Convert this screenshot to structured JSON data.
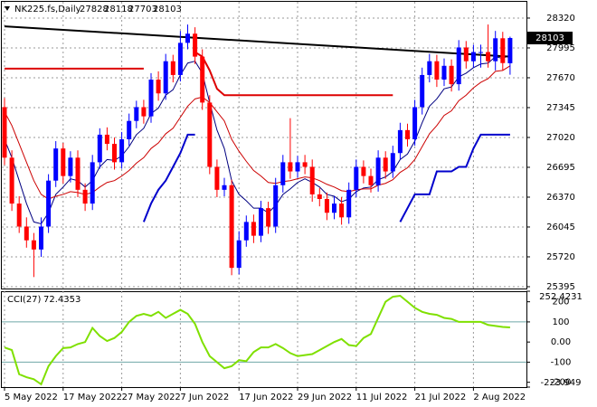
{
  "chart_data": [
    {
      "type": "candlestick",
      "title": "NK225.fs,Daily",
      "categories": [
        "5 May 2022",
        null,
        null,
        null,
        null,
        null,
        null,
        null,
        "17 May 2022",
        null,
        null,
        null,
        null,
        null,
        null,
        null,
        "27 May 2022",
        null,
        null,
        null,
        null,
        null,
        null,
        null,
        "7 Jun 2022",
        null,
        null,
        null,
        null,
        null,
        null,
        null,
        "17 Jun 2022",
        null,
        null,
        null,
        null,
        null,
        null,
        null,
        "29 Jun 2022",
        null,
        null,
        null,
        null,
        null,
        null,
        null,
        "11 Jul 2022",
        null,
        null,
        null,
        null,
        null,
        null,
        null,
        "21 Jul 2022",
        null,
        null,
        null,
        null,
        null,
        null,
        null,
        "2 Aug 2022",
        null,
        null,
        null,
        null,
        null
      ],
      "open": [
        27350,
        26800,
        26300,
        26050,
        25900,
        25800,
        26050,
        26550,
        26900,
        26600,
        26800,
        26450,
        26300,
        26750,
        27050,
        26950,
        26750,
        27000,
        27200,
        27350,
        27250,
        27650,
        27500,
        27850,
        27700,
        28050,
        28150,
        27900,
        27400,
        26700,
        26450,
        26500,
        25600,
        25900,
        26100,
        25950,
        26250,
        26050,
        26500,
        26750,
        26650,
        26750,
        26700,
        26400,
        26350,
        26200,
        26300,
        26150,
        26450,
        26700,
        26600,
        26500,
        26800,
        26650,
        26850,
        27100,
        27000,
        27350,
        27700,
        27850,
        27650,
        27800,
        27600,
        28000,
        27850,
        27950,
        27950,
        27850,
        28100,
        27828
      ],
      "high": [
        27450,
        26880,
        26380,
        26150,
        25980,
        26150,
        26620,
        26980,
        26960,
        26870,
        26880,
        26520,
        26830,
        27120,
        27130,
        27020,
        27080,
        27280,
        27420,
        27430,
        27720,
        27740,
        27930,
        27920,
        28180,
        28250,
        28220,
        27980,
        27480,
        26780,
        26580,
        26560,
        26000,
        26170,
        26180,
        26330,
        26320,
        26580,
        26830,
        27230,
        26820,
        26830,
        26780,
        26470,
        26420,
        26380,
        26370,
        26530,
        26780,
        26770,
        26680,
        26880,
        26870,
        26930,
        27180,
        27170,
        27430,
        27780,
        27930,
        27920,
        27880,
        27870,
        28080,
        28070,
        28030,
        28030,
        28250,
        28180,
        28170,
        28118
      ],
      "low": [
        26720,
        26220,
        25980,
        25820,
        25500,
        25720,
        25980,
        26480,
        26520,
        26530,
        26370,
        26220,
        26230,
        26680,
        26880,
        26670,
        26680,
        26930,
        27120,
        27170,
        27180,
        27420,
        27430,
        27620,
        27630,
        27980,
        27820,
        27320,
        26620,
        26370,
        26380,
        25520,
        25530,
        25830,
        25870,
        25880,
        25970,
        25980,
        26420,
        26570,
        26580,
        26620,
        26320,
        26270,
        26120,
        26130,
        26070,
        26080,
        26370,
        26520,
        26420,
        26430,
        26570,
        26580,
        26780,
        26920,
        26930,
        27270,
        27620,
        27570,
        27580,
        27520,
        27530,
        27770,
        27780,
        27780,
        27780,
        27750,
        27750,
        27703
      ],
      "close": [
        26800,
        26300,
        26050,
        25900,
        25800,
        26050,
        26550,
        26900,
        26600,
        26800,
        26450,
        26300,
        26750,
        27050,
        26950,
        26750,
        27000,
        27200,
        27350,
        27250,
        27650,
        27500,
        27850,
        27700,
        28050,
        28150,
        27900,
        27400,
        26700,
        26450,
        26500,
        25600,
        25900,
        26100,
        25950,
        26250,
        26050,
        26500,
        26750,
        26650,
        26750,
        26700,
        26400,
        26350,
        26200,
        26300,
        26150,
        26450,
        26700,
        26600,
        26500,
        26800,
        26650,
        26850,
        27100,
        27000,
        27350,
        27700,
        27850,
        27650,
        27800,
        27600,
        28000,
        27850,
        27950,
        27950,
        27850,
        28100,
        27830,
        28103
      ],
      "up_color": "#0000ff",
      "down_color": "#ff0000",
      "ylim": [
        25385,
        28497
      ],
      "yticks": [
        28320,
        27995,
        27670,
        27345,
        27020,
        26695,
        26370,
        26045,
        25720,
        25395
      ],
      "grid": true,
      "series": [
        {
          "color": "#000080",
          "width": 1,
          "values": [
            27000,
            26800,
            26550,
            26300,
            26100,
            26080,
            26200,
            26400,
            26480,
            26570,
            26550,
            26480,
            26550,
            26700,
            26780,
            26770,
            26820,
            26920,
            27050,
            27120,
            27280,
            27340,
            27480,
            27540,
            27700,
            27830,
            27850,
            27720,
            27400,
            27100,
            26900,
            26550,
            26400,
            26330,
            26250,
            26250,
            26200,
            26280,
            26400,
            26460,
            26530,
            26570,
            26530,
            26480,
            26400,
            26380,
            26320,
            26350,
            26430,
            26470,
            26480,
            26560,
            26590,
            26650,
            26780,
            26840,
            26980,
            27180,
            27360,
            27440,
            27550,
            27570,
            27680,
            27720,
            27780,
            27820,
            27830,
            27900,
            27880,
            27920
          ]
        },
        {
          "color": "#cc0000",
          "width": 1,
          "values": [
            27300,
            27150,
            26950,
            26750,
            26550,
            26400,
            26350,
            26380,
            26400,
            26430,
            26420,
            26400,
            26420,
            26480,
            26530,
            26550,
            26600,
            26660,
            26740,
            26800,
            26900,
            26960,
            27060,
            27120,
            27240,
            27360,
            27440,
            27460,
            27400,
            27300,
            27200,
            27000,
            26870,
            26760,
            26660,
            26600,
            26530,
            26520,
            26540,
            26550,
            26570,
            26590,
            26580,
            26550,
            26510,
            26480,
            26440,
            26430,
            26450,
            26460,
            26460,
            26500,
            26520,
            26560,
            26640,
            26690,
            26780,
            26920,
            27060,
            27150,
            27260,
            27310,
            27420,
            27480,
            27560,
            27620,
            27660,
            27740,
            27750,
            27800
          ]
        },
        {
          "color": "#0000cc",
          "width": 2,
          "values": [
            null,
            null,
            null,
            null,
            null,
            null,
            null,
            null,
            null,
            null,
            null,
            null,
            null,
            null,
            null,
            null,
            null,
            null,
            null,
            26100,
            26300,
            26450,
            26550,
            26700,
            26850,
            27050,
            27050,
            null,
            null,
            null,
            null,
            null,
            null,
            null,
            null,
            null,
            null,
            null,
            null,
            null,
            null,
            null,
            null,
            null,
            null,
            null,
            null,
            null,
            null,
            null,
            null,
            null,
            null,
            null,
            26100,
            26250,
            26400,
            26400,
            26400,
            26650,
            26650,
            26650,
            26700,
            26700,
            26900,
            27050,
            27050,
            27050,
            27050,
            27050
          ]
        },
        {
          "color": "#dd0000",
          "width": 2,
          "values": [
            27770,
            27770,
            27770,
            27770,
            27770,
            27770,
            27770,
            27770,
            27770,
            27770,
            27770,
            27770,
            27770,
            27770,
            27770,
            27770,
            27770,
            27770,
            27770,
            27770,
            null,
            null,
            null,
            null,
            null,
            null,
            27950,
            27900,
            27750,
            27550,
            27480,
            27480,
            27480,
            27480,
            27480,
            27480,
            27480,
            27480,
            27480,
            27480,
            27480,
            27480,
            27480,
            27480,
            27480,
            27480,
            27480,
            27480,
            27480,
            27480,
            27480,
            27480,
            27480,
            27480,
            null,
            null,
            null,
            null,
            null,
            null,
            null,
            null,
            null,
            null,
            null,
            null,
            null,
            null,
            null,
            null
          ]
        },
        {
          "color": "#000000",
          "width": 2,
          "x": [
            0,
            69
          ],
          "values": [
            28230,
            27900
          ]
        }
      ]
    },
    {
      "type": "line",
      "title": "CCI(27)",
      "series": [
        {
          "color": "#7fe000",
          "width": 2,
          "values": [
            -27,
            -40,
            -160,
            -175,
            -185,
            -210,
            -120,
            -70,
            -30,
            -27,
            -10,
            0,
            70,
            30,
            5,
            20,
            50,
            100,
            130,
            140,
            130,
            150,
            120,
            140,
            160,
            140,
            90,
            0,
            -70,
            -100,
            -130,
            -120,
            -90,
            -95,
            -50,
            -27,
            -27,
            -10,
            -30,
            -55,
            -70,
            -65,
            -60,
            -40,
            -20,
            0,
            15,
            -15,
            -20,
            20,
            40,
            120,
            200,
            225,
            230,
            200,
            170,
            150,
            140,
            135,
            120,
            115,
            100,
            100,
            100,
            100,
            85,
            80,
            75,
            72.4353
          ]
        }
      ],
      "ylim": [
        -223.949,
        252.4231
      ],
      "yticks": [
        252.4231,
        200,
        100,
        {
          "value": 0,
          "label": "0.00"
        },
        -100,
        -200,
        -223.949
      ],
      "levels": [
        100,
        -100
      ],
      "level_color": "#6fa8a8"
    }
  ]
}
